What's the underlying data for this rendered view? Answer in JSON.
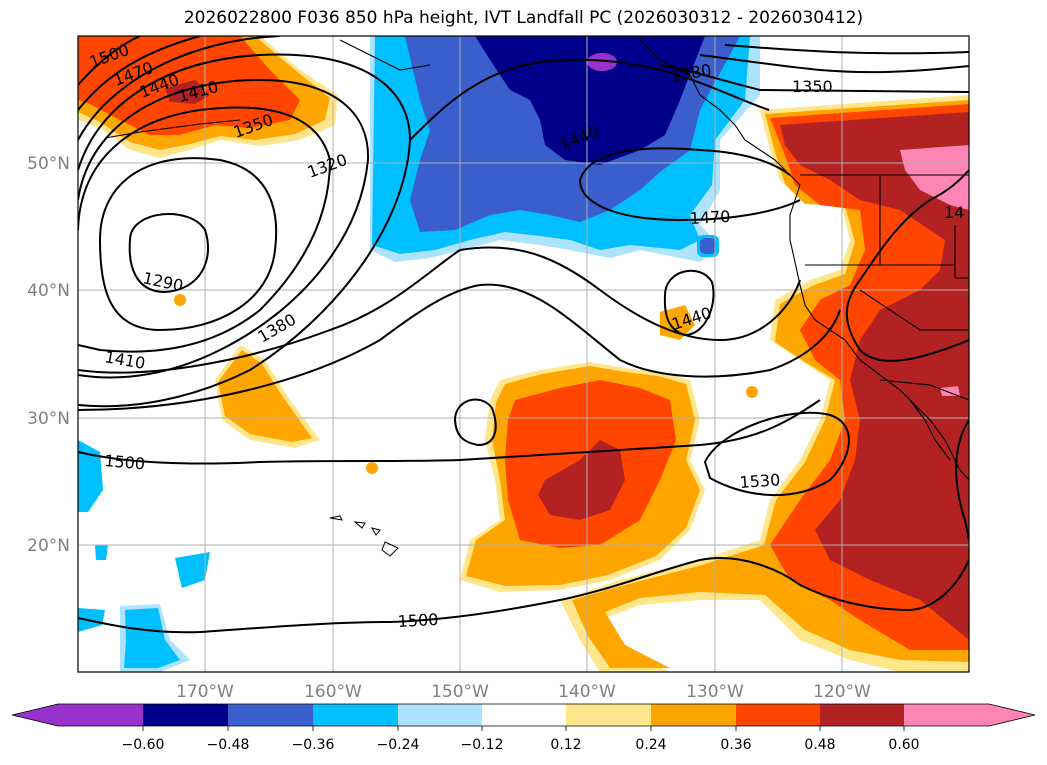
{
  "title": "2026022800 F036 850 hPa height, IVT Landfall PC (2026030312 - 2026030412)",
  "colors": {
    "purple": "#9932cc",
    "navy": "#00008b",
    "royal_blue": "#3a5fcd",
    "deep_sky_blue": "#00bfff",
    "light_sky_blue": "#aee3ff",
    "white": "#ffffff",
    "light_yellow": "#ffe68a",
    "orange": "#ffa500",
    "orange_red": "#ff4500",
    "firebrick": "#b22222",
    "hot_pink": "#ff85b4"
  },
  "lat_labels": [
    "50°N",
    "40°N",
    "30°N",
    "20°N"
  ],
  "lon_labels": [
    "170°W",
    "160°W",
    "150°W",
    "140°W",
    "130°W",
    "120°W"
  ],
  "contour_labels": [
    "1500",
    "1470",
    "1440",
    "1410",
    "1350",
    "1320",
    "1290",
    "1380",
    "1410",
    "1500",
    "1440",
    "1470",
    "1380",
    "1350",
    "1440",
    "1530",
    "1500",
    "14"
  ],
  "colorbar": {
    "ticks": [
      "−0.60",
      "−0.48",
      "−0.36",
      "−0.24",
      "−0.12",
      "0.12",
      "0.24",
      "0.36",
      "0.48",
      "0.60"
    ]
  }
}
